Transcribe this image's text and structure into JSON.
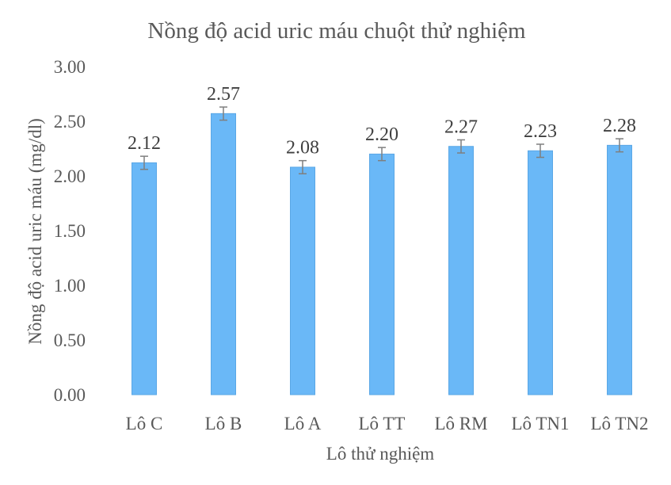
{
  "chart_data": {
    "type": "bar",
    "title": "Nồng độ acid uric máu chuột thử nghiệm",
    "xlabel": "Lô thử nghiệm",
    "ylabel": "Nồng độ acid uric máu (mg/dl)",
    "categories": [
      "Lô C",
      "Lô B",
      "Lô A",
      "Lô TT",
      "Lô RM",
      "Lô TN1",
      "Lô TN2"
    ],
    "values": [
      2.12,
      2.57,
      2.08,
      2.2,
      2.27,
      2.23,
      2.28
    ],
    "data_labels": [
      "2.12",
      "2.57",
      "2.08",
      "2.20",
      "2.27",
      "2.23",
      "2.28"
    ],
    "errors": [
      0.06,
      0.06,
      0.06,
      0.06,
      0.06,
      0.06,
      0.06
    ],
    "ylim": [
      0,
      3
    ],
    "yticks": [
      "0.00",
      "0.50",
      "1.00",
      "1.50",
      "2.00",
      "2.50",
      "3.00"
    ],
    "grid": false,
    "colors": {
      "bar": "#6ab8f7",
      "bar_edge": "#5aa7e6",
      "error_bar": "#7f7f7f",
      "text": "#595959"
    }
  }
}
